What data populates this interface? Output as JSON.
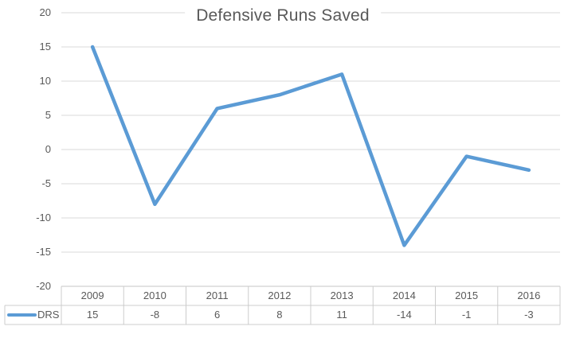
{
  "title": "Defensive Runs Saved",
  "legend": {
    "label": "DRS"
  },
  "colors": {
    "line": "#5B9BD5",
    "gridline": "#D9D9D9",
    "table_border": "#CCCCCC",
    "axis_line": "#C4C4C4",
    "text": "#595959"
  },
  "chart_data": {
    "type": "line",
    "title": "Defensive Runs Saved",
    "categories": [
      "2009",
      "2010",
      "2011",
      "2012",
      "2013",
      "2014",
      "2015",
      "2016"
    ],
    "series": [
      {
        "name": "DRS",
        "values": [
          15,
          -8,
          6,
          8,
          11,
          -14,
          -1,
          -3
        ]
      }
    ],
    "xlabel": "",
    "ylabel": "",
    "ylim": [
      -20,
      20
    ],
    "ytick_step": 5,
    "yticks": [
      20,
      15,
      10,
      5,
      0,
      -5,
      -10,
      -15,
      -20
    ],
    "grid": true,
    "legend_position": "left-of-data-table",
    "data_table_shown": true
  }
}
